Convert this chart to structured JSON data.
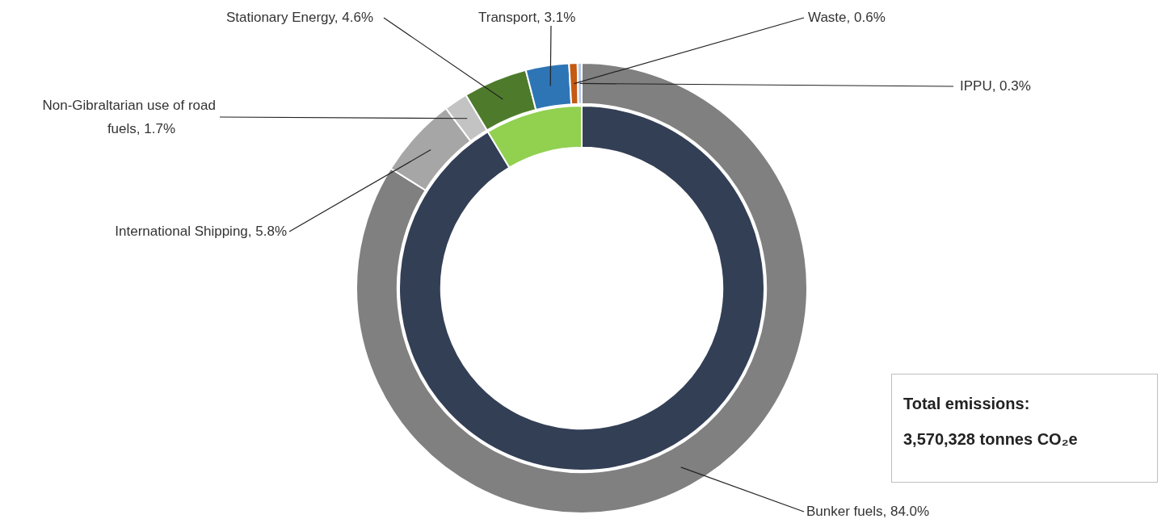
{
  "chart_data": [
    {
      "type": "donut",
      "categories": [
        "Bunker fuels",
        "International Shipping",
        "Non-Gibraltarian use of road fuels",
        "Stationary Energy",
        "Transport",
        "Waste",
        "IPPU"
      ],
      "values": [
        84.0,
        5.8,
        1.7,
        4.6,
        3.1,
        0.6,
        0.3
      ],
      "colors": [
        "#808080",
        "#a6a6a6",
        "#c3c3c3",
        "#4e7b2b",
        "#2e75b6",
        "#c55a11",
        "#b4c7e7"
      ],
      "value_labels": [
        "84.0%",
        "5.8%",
        "1.7%",
        "4.6%",
        "3.1%",
        "0.6%",
        "0.3%"
      ],
      "legend": false,
      "annotations": [
        "Total emissions:",
        "3,570,328 tonnes CO₂e"
      ]
    },
    {
      "type": "donut",
      "categories": [
        null,
        null
      ],
      "values": [
        91.4,
        8.6
      ],
      "colors": [
        "#333f55",
        "#92d050"
      ],
      "legend": false
    }
  ]
}
